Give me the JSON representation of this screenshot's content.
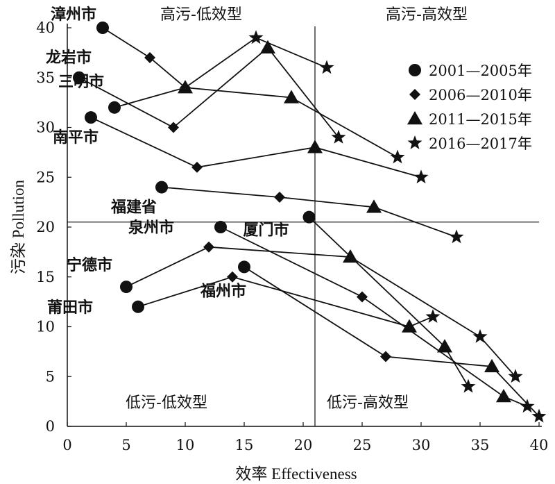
{
  "chart_data": {
    "type": "scatter",
    "title": "",
    "xlabel": "效率 Effectiveness",
    "ylabel": "污染 Pollution",
    "xlim": [
      0,
      40
    ],
    "ylim": [
      0,
      40
    ],
    "xticks": [
      0,
      5,
      10,
      15,
      20,
      25,
      30,
      35,
      40
    ],
    "yticks": [
      0,
      5,
      10,
      15,
      20,
      25,
      30,
      35,
      40
    ],
    "grid": false,
    "legend_position": "top-right",
    "reference_lines": {
      "x": 21,
      "y": 20.5
    },
    "periods": [
      {
        "name": "2001—2005年",
        "marker": "circle"
      },
      {
        "name": "2006—2010年",
        "marker": "diamond"
      },
      {
        "name": "2011—2015年",
        "marker": "triangle"
      },
      {
        "name": "2016—2017年",
        "marker": "star"
      }
    ],
    "quadrants": [
      {
        "label": "高污-低效型"
      },
      {
        "label": "高污-高效型"
      },
      {
        "label": "低污-低效型"
      },
      {
        "label": "低污-高效型"
      }
    ],
    "series": [
      {
        "name": "漳州市",
        "points": [
          [
            3,
            40
          ],
          [
            7,
            37
          ],
          [
            10,
            34
          ],
          [
            16,
            39
          ],
          [
            22,
            36
          ]
        ]
      },
      {
        "name": "龙岩市",
        "points": [
          [
            1,
            35
          ],
          [
            9,
            30
          ],
          [
            17,
            38
          ],
          [
            23,
            29
          ]
        ]
      },
      {
        "name": "三明市",
        "points": [
          [
            4,
            32
          ],
          [
            10,
            34
          ],
          [
            19,
            33
          ],
          [
            28,
            27
          ]
        ]
      },
      {
        "name": "南平市",
        "points": [
          [
            2,
            31
          ],
          [
            11,
            26
          ],
          [
            21,
            28
          ],
          [
            30,
            25
          ]
        ]
      },
      {
        "name": "福建省",
        "points": [
          [
            8,
            24
          ],
          [
            18,
            23
          ],
          [
            26,
            22
          ],
          [
            33,
            19
          ]
        ]
      },
      {
        "name": "厦门市",
        "points": [
          [
            20.5,
            21
          ],
          [
            32,
            8
          ],
          [
            34,
            4
          ]
        ]
      },
      {
        "name": "泉州市",
        "points": [
          [
            13,
            20
          ],
          [
            25,
            13
          ],
          [
            37,
            3
          ],
          [
            39,
            2
          ]
        ]
      },
      {
        "name": "宁德市",
        "points": [
          [
            5,
            14
          ],
          [
            12,
            18
          ],
          [
            24,
            17
          ],
          [
            35,
            9
          ],
          [
            38,
            5
          ]
        ]
      },
      {
        "name": "莆田市",
        "points": [
          [
            6,
            12
          ],
          [
            14,
            15
          ],
          [
            29,
            10
          ],
          [
            31,
            11
          ]
        ]
      },
      {
        "name": "福州市",
        "points": [
          [
            15,
            16
          ],
          [
            27,
            7
          ],
          [
            36,
            6
          ],
          [
            40,
            1
          ]
        ]
      }
    ]
  }
}
